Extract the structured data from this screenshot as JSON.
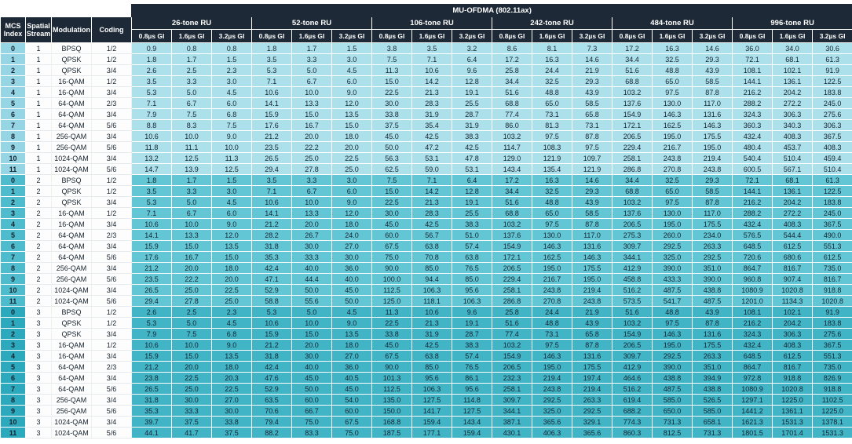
{
  "title": "MU-OFDMA (802.11ax)",
  "columns": {
    "left": [
      {
        "line1": "MCS",
        "line2": "Index"
      },
      {
        "line1": "Spatial",
        "line2": "Stream"
      },
      {
        "line1": "Modulation",
        "line2": ""
      },
      {
        "line1": "Coding",
        "line2": ""
      }
    ],
    "ru_groups": [
      "26-tone RU",
      "52-tone RU",
      "106-tone RU",
      "242-tone RU",
      "484-tone RU",
      "996-tone RU"
    ],
    "gi_labels": [
      "0.8µs GI",
      "1.6µs GI",
      "3.2µs GI"
    ]
  },
  "colors": {
    "header_bg": "#1d2936",
    "header_text": "#ffffff",
    "stream1_index_bg": "#96d6e4",
    "stream1_bg": "#ace0ea",
    "stream2_index_bg": "#4fbccd",
    "stream2_bg": "#63c6d4",
    "stream3_index_bg": "#2da9bd",
    "stream3_bg": "#41b4c6",
    "text_dark": "#15222e"
  },
  "rows": [
    {
      "mcs": "0",
      "stream": "1",
      "modulation": "BPSQ",
      "coding": "1/2",
      "rates": [
        "0.9",
        "0.8",
        "0.8",
        "1.8",
        "1.7",
        "1.5",
        "3.8",
        "3.5",
        "3.2",
        "8.6",
        "8.1",
        "7.3",
        "17.2",
        "16.3",
        "14.6",
        "36.0",
        "34.0",
        "30.6"
      ]
    },
    {
      "mcs": "1",
      "stream": "1",
      "modulation": "QPSK",
      "coding": "1/2",
      "rates": [
        "1.8",
        "1.7",
        "1.5",
        "3.5",
        "3.3",
        "3.0",
        "7.5",
        "7.1",
        "6.4",
        "17.2",
        "16.3",
        "14.6",
        "34.4",
        "32.5",
        "29.3",
        "72.1",
        "68.1",
        "61.3"
      ]
    },
    {
      "mcs": "2",
      "stream": "1",
      "modulation": "QPSK",
      "coding": "3/4",
      "rates": [
        "2.6",
        "2.5",
        "2.3",
        "5.3",
        "5.0",
        "4.5",
        "11.3",
        "10.6",
        "9.6",
        "25.8",
        "24.4",
        "21.9",
        "51.6",
        "48.8",
        "43.9",
        "108.1",
        "102.1",
        "91.9"
      ]
    },
    {
      "mcs": "3",
      "stream": "1",
      "modulation": "16-QAM",
      "coding": "1/2",
      "rates": [
        "3.5",
        "3.3",
        "3.0",
        "7.1",
        "6.7",
        "6.0",
        "15.0",
        "14.2",
        "12.8",
        "34.4",
        "32.5",
        "29.3",
        "68.8",
        "65.0",
        "58.5",
        "144.1",
        "136.1",
        "122.5"
      ]
    },
    {
      "mcs": "4",
      "stream": "1",
      "modulation": "16-QAM",
      "coding": "3/4",
      "rates": [
        "5.3",
        "5.0",
        "4.5",
        "10.6",
        "10.0",
        "9.0",
        "22.5",
        "21.3",
        "19.1",
        "51.6",
        "48.8",
        "43.9",
        "103.2",
        "97.5",
        "87.8",
        "216.2",
        "204.2",
        "183.8"
      ]
    },
    {
      "mcs": "5",
      "stream": "1",
      "modulation": "64-QAM",
      "coding": "2/3",
      "rates": [
        "7.1",
        "6.7",
        "6.0",
        "14.1",
        "13.3",
        "12.0",
        "30.0",
        "28.3",
        "25.5",
        "68.8",
        "65.0",
        "58.5",
        "137.6",
        "130.0",
        "117.0",
        "288.2",
        "272.2",
        "245.0"
      ]
    },
    {
      "mcs": "6",
      "stream": "1",
      "modulation": "64-QAM",
      "coding": "3/4",
      "rates": [
        "7.9",
        "7.5",
        "6.8",
        "15.9",
        "15.0",
        "13.5",
        "33.8",
        "31.9",
        "28.7",
        "77.4",
        "73.1",
        "65.8",
        "154.9",
        "146.3",
        "131.6",
        "324.3",
        "306.3",
        "275.6"
      ]
    },
    {
      "mcs": "7",
      "stream": "1",
      "modulation": "64-QAM",
      "coding": "5/6",
      "rates": [
        "8.8",
        "8.3",
        "7.5",
        "17.6",
        "16.7",
        "15.0",
        "37.5",
        "35.4",
        "31.9",
        "86.0",
        "81.3",
        "73.1",
        "172.1",
        "162.5",
        "146.3",
        "360.3",
        "340.3",
        "306.3"
      ]
    },
    {
      "mcs": "8",
      "stream": "1",
      "modulation": "256-QAM",
      "coding": "3/4",
      "rates": [
        "10.6",
        "10.0",
        "9.0",
        "21.2",
        "20.0",
        "18.0",
        "45.0",
        "42.5",
        "38.3",
        "103.2",
        "97.5",
        "87.8",
        "206.5",
        "195.0",
        "175.5",
        "432.4",
        "408.3",
        "367.5"
      ]
    },
    {
      "mcs": "9",
      "stream": "1",
      "modulation": "256-QAM",
      "coding": "5/6",
      "rates": [
        "11.8",
        "11.1",
        "10.0",
        "23.5",
        "22.2",
        "20.0",
        "50.0",
        "47.2",
        "42.5",
        "114.7",
        "108.3",
        "97.5",
        "229.4",
        "216.7",
        "195.0",
        "480.4",
        "453.7",
        "408.3"
      ]
    },
    {
      "mcs": "10",
      "stream": "1",
      "modulation": "1024-QAM",
      "coding": "3/4",
      "rates": [
        "13.2",
        "12.5",
        "11.3",
        "26.5",
        "25.0",
        "22.5",
        "56.3",
        "53.1",
        "47.8",
        "129.0",
        "121.9",
        "109.7",
        "258.1",
        "243.8",
        "219.4",
        "540.4",
        "510.4",
        "459.4"
      ]
    },
    {
      "mcs": "11",
      "stream": "1",
      "modulation": "1024-QAM",
      "coding": "5/6",
      "rates": [
        "14.7",
        "13.9",
        "12.5",
        "29.4",
        "27.8",
        "25.0",
        "62.5",
        "59.0",
        "53.1",
        "143.4",
        "135.4",
        "121.9",
        "286.8",
        "270.8",
        "243.8",
        "600.5",
        "567.1",
        "510.4"
      ]
    },
    {
      "mcs": "0",
      "stream": "2",
      "modulation": "BPSQ",
      "coding": "1/2",
      "rates": [
        "1.8",
        "1.7",
        "1.5",
        "3.5",
        "3.3",
        "3.0",
        "7.5",
        "7.1",
        "6.4",
        "17.2",
        "16.3",
        "14.6",
        "34.4",
        "32.5",
        "29.3",
        "72.1",
        "68.1",
        "61.3"
      ]
    },
    {
      "mcs": "1",
      "stream": "2",
      "modulation": "QPSK",
      "coding": "1/2",
      "rates": [
        "3.5",
        "3.3",
        "3.0",
        "7.1",
        "6.7",
        "6.0",
        "15.0",
        "14.2",
        "12.8",
        "34.4",
        "32.5",
        "29.3",
        "68.8",
        "65.0",
        "58.5",
        "144.1",
        "136.1",
        "122.5"
      ]
    },
    {
      "mcs": "2",
      "stream": "2",
      "modulation": "QPSK",
      "coding": "3/4",
      "rates": [
        "5.3",
        "5.0",
        "4.5",
        "10.6",
        "10.0",
        "9.0",
        "22.5",
        "21.3",
        "19.1",
        "51.6",
        "48.8",
        "43.9",
        "103.2",
        "97.5",
        "87.8",
        "216.2",
        "204.2",
        "183.8"
      ]
    },
    {
      "mcs": "3",
      "stream": "2",
      "modulation": "16-QAM",
      "coding": "1/2",
      "rates": [
        "7.1",
        "6.7",
        "6.0",
        "14.1",
        "13.3",
        "12.0",
        "30.0",
        "28.3",
        "25.5",
        "68.8",
        "65.0",
        "58.5",
        "137.6",
        "130.0",
        "117.0",
        "288.2",
        "272.2",
        "245.0"
      ]
    },
    {
      "mcs": "4",
      "stream": "2",
      "modulation": "16-QAM",
      "coding": "3/4",
      "rates": [
        "10.6",
        "10.0",
        "9.0",
        "21.2",
        "20.0",
        "18.0",
        "45.0",
        "42.5",
        "38.3",
        "103.2",
        "97.5",
        "87.8",
        "206.5",
        "195.0",
        "175.5",
        "432.4",
        "408.3",
        "367.5"
      ]
    },
    {
      "mcs": "5",
      "stream": "2",
      "modulation": "64-QAM",
      "coding": "2/3",
      "rates": [
        "14.1",
        "13.3",
        "12.0",
        "28.2",
        "26.7",
        "24.0",
        "60.0",
        "56.7",
        "51.0",
        "137.6",
        "130.0",
        "117.0",
        "275.3",
        "260.0",
        "234.0",
        "576.5",
        "544.4",
        "490.0"
      ]
    },
    {
      "mcs": "6",
      "stream": "2",
      "modulation": "64-QAM",
      "coding": "3/4",
      "rates": [
        "15.9",
        "15.0",
        "13.5",
        "31.8",
        "30.0",
        "27.0",
        "67.5",
        "63.8",
        "57.4",
        "154.9",
        "146.3",
        "131.6",
        "309.7",
        "292.5",
        "263.3",
        "648.5",
        "612.5",
        "551.3"
      ]
    },
    {
      "mcs": "7",
      "stream": "2",
      "modulation": "64-QAM",
      "coding": "5/6",
      "rates": [
        "17.6",
        "16.7",
        "15.0",
        "35.3",
        "33.3",
        "30.0",
        "75.0",
        "70.8",
        "63.8",
        "172.1",
        "162.5",
        "146.3",
        "344.1",
        "325.0",
        "292.5",
        "720.6",
        "680.6",
        "612.5"
      ]
    },
    {
      "mcs": "8",
      "stream": "2",
      "modulation": "256-QAM",
      "coding": "3/4",
      "rates": [
        "21.2",
        "20.0",
        "18.0",
        "42.4",
        "40.0",
        "36.0",
        "90.0",
        "85.0",
        "76.5",
        "206.5",
        "195.0",
        "175.5",
        "412.9",
        "390.0",
        "351.0",
        "864.7",
        "816.7",
        "735.0"
      ]
    },
    {
      "mcs": "9",
      "stream": "2",
      "modulation": "256-QAM",
      "coding": "5/6",
      "rates": [
        "23.5",
        "22.2",
        "20.0",
        "47.1",
        "44.4",
        "40.0",
        "100.0",
        "94.4",
        "85.0",
        "229.4",
        "216.7",
        "195.0",
        "458.8",
        "433.3",
        "390.0",
        "960.8",
        "907.4",
        "816.7"
      ]
    },
    {
      "mcs": "10",
      "stream": "2",
      "modulation": "1024-QAM",
      "coding": "3/4",
      "rates": [
        "26.5",
        "25.0",
        "22.5",
        "52.9",
        "50.0",
        "45.0",
        "112.5",
        "106.3",
        "95.6",
        "258.1",
        "243.8",
        "219.4",
        "516.2",
        "487.5",
        "438.8",
        "1080.9",
        "1020.8",
        "918.8"
      ]
    },
    {
      "mcs": "11",
      "stream": "2",
      "modulation": "1024-QAM",
      "coding": "5/6",
      "rates": [
        "29.4",
        "27.8",
        "25.0",
        "58.8",
        "55.6",
        "50.0",
        "125.0",
        "118.1",
        "106.3",
        "286.8",
        "270.8",
        "243.8",
        "573.5",
        "541.7",
        "487.5",
        "1201.0",
        "1134.3",
        "1020.8"
      ]
    },
    {
      "mcs": "0",
      "stream": "3",
      "modulation": "BPSQ",
      "coding": "1/2",
      "rates": [
        "2.6",
        "2.5",
        "2.3",
        "5.3",
        "5.0",
        "4.5",
        "11.3",
        "10.6",
        "9.6",
        "25.8",
        "24.4",
        "21.9",
        "51.6",
        "48.8",
        "43.9",
        "108.1",
        "102.1",
        "91.9"
      ]
    },
    {
      "mcs": "1",
      "stream": "3",
      "modulation": "QPSK",
      "coding": "1/2",
      "rates": [
        "5.3",
        "5.0",
        "4.5",
        "10.6",
        "10.0",
        "9.0",
        "22.5",
        "21.3",
        "19.1",
        "51.6",
        "48.8",
        "43.9",
        "103.2",
        "97.5",
        "87.8",
        "216.2",
        "204.2",
        "183.8"
      ]
    },
    {
      "mcs": "2",
      "stream": "3",
      "modulation": "QPSK",
      "coding": "3/4",
      "rates": [
        "7.9",
        "7.5",
        "6.8",
        "15.9",
        "15.0",
        "13.5",
        "33.8",
        "31.9",
        "28.7",
        "77.4",
        "73.1",
        "65.8",
        "154.9",
        "146.3",
        "131.6",
        "324.3",
        "306.3",
        "275.6"
      ]
    },
    {
      "mcs": "3",
      "stream": "3",
      "modulation": "16-QAM",
      "coding": "1/2",
      "rates": [
        "10.6",
        "10.0",
        "9.0",
        "21.2",
        "20.0",
        "18.0",
        "45.0",
        "42.5",
        "38.3",
        "103.2",
        "97.5",
        "87.8",
        "206.5",
        "195.0",
        "175.5",
        "432.4",
        "408.3",
        "367.5"
      ]
    },
    {
      "mcs": "4",
      "stream": "3",
      "modulation": "16-QAM",
      "coding": "3/4",
      "rates": [
        "15.9",
        "15.0",
        "13.5",
        "31.8",
        "30.0",
        "27.0",
        "67.5",
        "63.8",
        "57.4",
        "154.9",
        "146.3",
        "131.6",
        "309.7",
        "292.5",
        "263.3",
        "648.5",
        "612.5",
        "551.3"
      ]
    },
    {
      "mcs": "5",
      "stream": "3",
      "modulation": "64-QAM",
      "coding": "2/3",
      "rates": [
        "21.2",
        "20.0",
        "18.0",
        "42.4",
        "40.0",
        "36.0",
        "90.0",
        "85.0",
        "76.5",
        "206.5",
        "195.0",
        "175.5",
        "412.9",
        "390.0",
        "351.0",
        "864.7",
        "816.7",
        "735.0"
      ]
    },
    {
      "mcs": "6",
      "stream": "3",
      "modulation": "64-QAM",
      "coding": "3/4",
      "rates": [
        "23.8",
        "22.5",
        "20.3",
        "47.6",
        "45.0",
        "40.5",
        "101.3",
        "95.6",
        "86.1",
        "232.3",
        "219.4",
        "197.4",
        "464.6",
        "438.8",
        "394.9",
        "972.8",
        "918.8",
        "826.9"
      ]
    },
    {
      "mcs": "7",
      "stream": "3",
      "modulation": "64-QAM",
      "coding": "5/6",
      "rates": [
        "26.5",
        "25.0",
        "22.5",
        "52.9",
        "50.0",
        "45.0",
        "112.5",
        "106.3",
        "95.6",
        "258.1",
        "243.8",
        "219.4",
        "516.2",
        "487.5",
        "438.8",
        "1080.9",
        "1020.8",
        "918.8"
      ]
    },
    {
      "mcs": "8",
      "stream": "3",
      "modulation": "256-QAM",
      "coding": "3/4",
      "rates": [
        "31.8",
        "30.0",
        "27.0",
        "63.5",
        "60.0",
        "54.0",
        "135.0",
        "127.5",
        "114.8",
        "309.7",
        "292.5",
        "263.3",
        "619.4",
        "585.0",
        "526.5",
        "1297.1",
        "1225.0",
        "1102.5"
      ]
    },
    {
      "mcs": "9",
      "stream": "3",
      "modulation": "256-QAM",
      "coding": "5/6",
      "rates": [
        "35.3",
        "33.3",
        "30.0",
        "70.6",
        "66.7",
        "60.0",
        "150.0",
        "141.7",
        "127.5",
        "344.1",
        "325.0",
        "292.5",
        "688.2",
        "650.0",
        "585.0",
        "1441.2",
        "1361.1",
        "1225.0"
      ]
    },
    {
      "mcs": "10",
      "stream": "3",
      "modulation": "1024-QAM",
      "coding": "3/4",
      "rates": [
        "39.7",
        "37.5",
        "33.8",
        "79.4",
        "75.0",
        "67.5",
        "168.8",
        "159.4",
        "143.4",
        "387.1",
        "365.6",
        "329.1",
        "774.3",
        "731.3",
        "658.1",
        "1621.3",
        "1531.3",
        "1378.1"
      ]
    },
    {
      "mcs": "11",
      "stream": "3",
      "modulation": "1024-QAM",
      "coding": "5/6",
      "rates": [
        "44.1",
        "41.7",
        "37.5",
        "88.2",
        "83.3",
        "75.0",
        "187.5",
        "177.1",
        "159.4",
        "430.1",
        "406.3",
        "365.6",
        "860.3",
        "812.5",
        "731.3",
        "1801.5",
        "1701.4",
        "1531.3"
      ]
    }
  ]
}
